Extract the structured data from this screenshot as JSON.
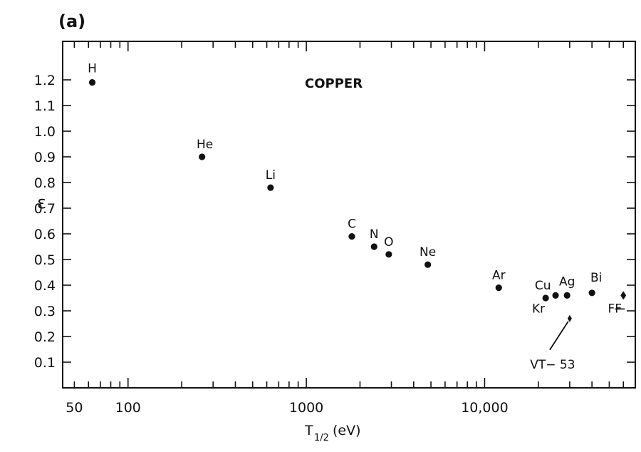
{
  "chart_data": {
    "type": "scatter",
    "panel_label": "(a)",
    "title": "COPPER",
    "xlabel_main": "T",
    "xlabel_sub": "1/2",
    "xlabel_unit": "(eV)",
    "ylabel": "ε",
    "x_scale": "log",
    "xlim": [
      43,
      70000
    ],
    "ylim": [
      0,
      1.35
    ],
    "grid": false,
    "x_tick_labels": [
      {
        "value": 50,
        "label": "50"
      },
      {
        "value": 100,
        "label": "100"
      },
      {
        "value": 1000,
        "label": "1000"
      },
      {
        "value": 10000,
        "label": "10,000"
      }
    ],
    "y_ticks": [
      0.1,
      0.2,
      0.3,
      0.4,
      0.5,
      0.6,
      0.7,
      0.8,
      0.9,
      1.0,
      1.1,
      1.2
    ],
    "y_tick_labels": [
      "0.1",
      "0.2",
      "0.3",
      "0.4",
      "0.5",
      "0.6",
      "0.7",
      "0.8",
      "0.9",
      "1.0",
      "1.1",
      "1.2"
    ],
    "points": [
      {
        "label": "H",
        "x": 63,
        "y": 1.19
      },
      {
        "label": "He",
        "x": 260,
        "y": 0.9
      },
      {
        "label": "Li",
        "x": 630,
        "y": 0.78
      },
      {
        "label": "C",
        "x": 1800,
        "y": 0.59
      },
      {
        "label": "N",
        "x": 2400,
        "y": 0.55
      },
      {
        "label": "O",
        "x": 2900,
        "y": 0.52
      },
      {
        "label": "Ne",
        "x": 4800,
        "y": 0.48
      },
      {
        "label": "Ar",
        "x": 12000,
        "y": 0.39
      },
      {
        "label": "Cu",
        "x": 22000,
        "y": 0.35
      },
      {
        "label": "Kr",
        "x": 25000,
        "y": 0.36
      },
      {
        "label": "Ag",
        "x": 29000,
        "y": 0.36
      },
      {
        "label": "Bi",
        "x": 40000,
        "y": 0.37
      },
      {
        "label": "VT-53",
        "x": 30000,
        "y": 0.27
      },
      {
        "label": "FF",
        "x": 60000,
        "y": 0.36
      }
    ],
    "display_labels": {
      "H": "H",
      "He": "He",
      "Li": "Li",
      "C": "C",
      "N": "N",
      "O": "O",
      "Ne": "Ne",
      "Ar": "Ar",
      "Cu": "Cu",
      "Kr": "Kr",
      "Ag": "Ag",
      "Bi": "Bi",
      "VT-53": "VT− 53",
      "FF": "FF"
    }
  }
}
